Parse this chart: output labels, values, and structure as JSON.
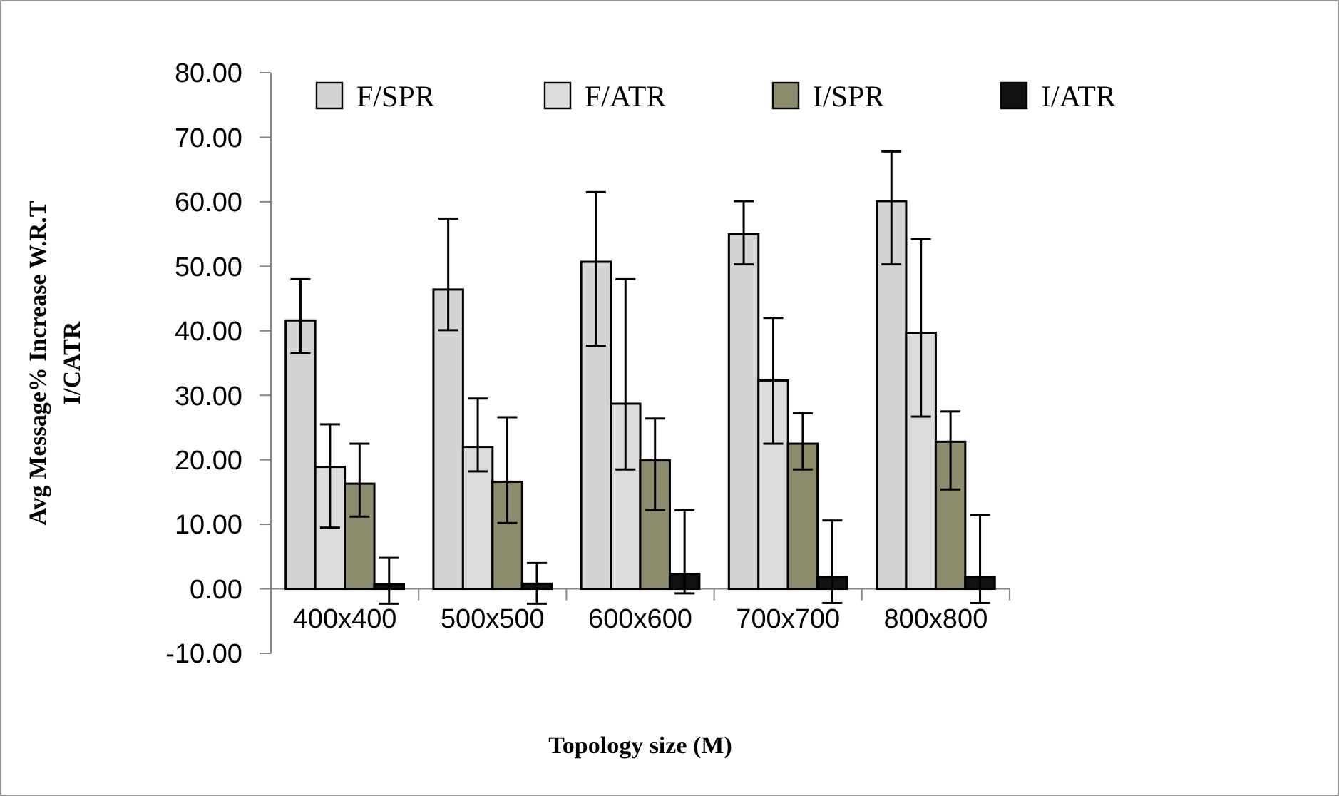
{
  "chart_data": {
    "type": "bar",
    "xlabel": "Topology size (M)",
    "ylabel": "Avg Message% Increase W.R.T I/CATR",
    "categories": [
      "400x400",
      "500x500",
      "600x600",
      "700x700",
      "800x800"
    ],
    "ylim": [
      -10,
      80
    ],
    "yticks": [
      {
        "value": -10,
        "label": "-10.00"
      },
      {
        "value": 0,
        "label": "0.00"
      },
      {
        "value": 10,
        "label": "10.00"
      },
      {
        "value": 20,
        "label": "20.00"
      },
      {
        "value": 30,
        "label": "30.00"
      },
      {
        "value": 40,
        "label": "40.00"
      },
      {
        "value": 50,
        "label": "50.00"
      },
      {
        "value": 60,
        "label": "60.00"
      },
      {
        "value": 70,
        "label": "70.00"
      },
      {
        "value": 80,
        "label": "80.00"
      }
    ],
    "grid": false,
    "legend": "top",
    "series": [
      {
        "name": "F/SPR",
        "color": "#d4d4d4",
        "values": [
          41.6,
          46.4,
          50.7,
          55.0,
          60.1
        ],
        "errors": [
          [
            36.5,
            48.0
          ],
          [
            40.1,
            57.4
          ],
          [
            37.7,
            61.5
          ],
          [
            50.3,
            60.1
          ],
          [
            50.3,
            67.8
          ]
        ]
      },
      {
        "name": "F/ATR",
        "color": "#dcdcdc",
        "values": [
          18.9,
          22.0,
          28.7,
          32.3,
          39.7
        ],
        "errors": [
          [
            9.5,
            25.5
          ],
          [
            18.2,
            29.5
          ],
          [
            18.5,
            48.0
          ],
          [
            22.5,
            42.0
          ],
          [
            26.7,
            54.2
          ]
        ]
      },
      {
        "name": "I/SPR",
        "color": "#8c8c6c",
        "values": [
          16.3,
          16.6,
          19.9,
          22.5,
          22.8
        ],
        "errors": [
          [
            11.2,
            22.5
          ],
          [
            10.2,
            26.6
          ],
          [
            12.2,
            26.4
          ],
          [
            18.5,
            27.2
          ],
          [
            15.4,
            27.5
          ]
        ]
      },
      {
        "name": "I/ATR",
        "color": "#111111",
        "values": [
          0.7,
          0.8,
          2.3,
          1.8,
          1.8
        ],
        "errors": [
          [
            -2.3,
            4.8
          ],
          [
            -2.3,
            4.0
          ],
          [
            -0.7,
            12.2
          ],
          [
            -2.2,
            10.6
          ],
          [
            -2.2,
            11.5
          ]
        ]
      }
    ]
  }
}
